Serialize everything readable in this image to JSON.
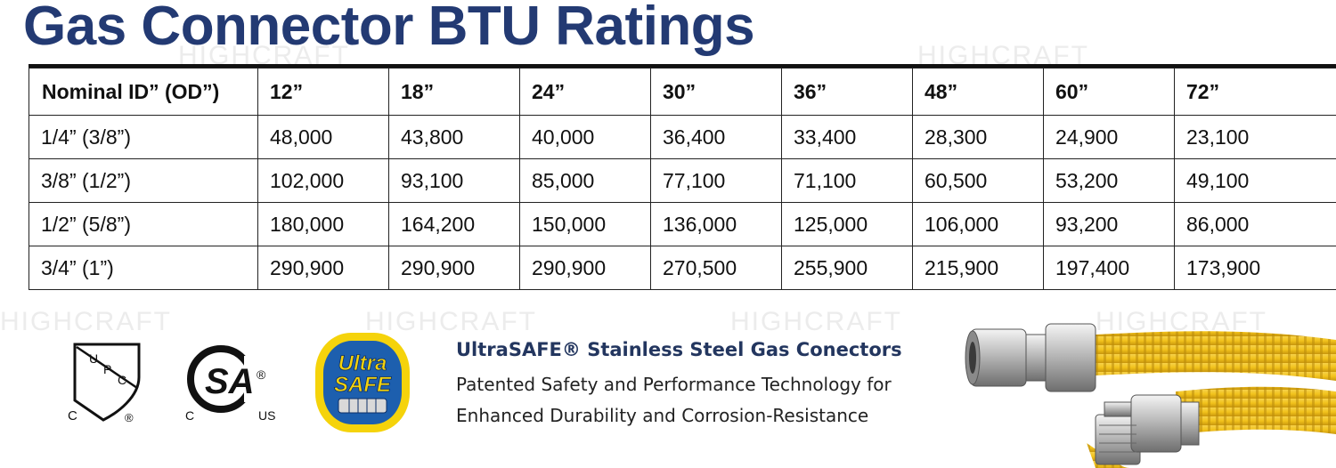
{
  "title": "Gas Connector BTU Ratings",
  "watermark_text": "HIGHCRAFT",
  "table": {
    "corner_header": "Nominal ID” (OD”)",
    "lengths": [
      "12”",
      "18”",
      "24”",
      "30”",
      "36”",
      "48”",
      "60”",
      "72”"
    ],
    "rows": [
      {
        "size": "1/4” (3/8”)",
        "values": [
          "48,000",
          "43,800",
          "40,000",
          "36,400",
          "33,400",
          "28,300",
          "24,900",
          "23,100"
        ]
      },
      {
        "size": "3/8” (1/2”)",
        "values": [
          "102,000",
          "93,100",
          "85,000",
          "77,100",
          "71,100",
          "60,500",
          "53,200",
          "49,100"
        ]
      },
      {
        "size": "1/2” (5/8”)",
        "values": [
          "180,000",
          "164,200",
          "150,000",
          "136,000",
          "125,000",
          "106,000",
          "93,200",
          "86,000"
        ]
      },
      {
        "size": "3/4” (1”)",
        "values": [
          "290,900",
          "290,900",
          "290,900",
          "270,500",
          "255,900",
          "215,900",
          "197,400",
          "173,900"
        ]
      }
    ]
  },
  "certifications": {
    "upc": {
      "letters": [
        "U",
        "P",
        "C"
      ],
      "c": "C",
      "reg": "®"
    },
    "csa": {
      "text": "SA",
      "c": "C",
      "us": "US",
      "reg": "®"
    },
    "ultrasafe": {
      "line1": "Ultra",
      "line2": "SAFE"
    }
  },
  "feature": {
    "title": "UltraSAFE® Stainless Steel Gas Conectors",
    "line1": "Patented Safety and Performance Technology for",
    "line2": "Enhanced Durability and Corrosion-Resistance"
  },
  "colors": {
    "title_blue": "#233a73",
    "feature_blue": "#23365f",
    "connector_yellow": "#f2c21b",
    "logo_blue": "#1d5fae",
    "logo_yellow": "#f5d30b"
  },
  "icons": [
    "upc-certification-logo",
    "csa-certification-logo",
    "ultrasafe-logo",
    "gas-connector-product-photo"
  ]
}
